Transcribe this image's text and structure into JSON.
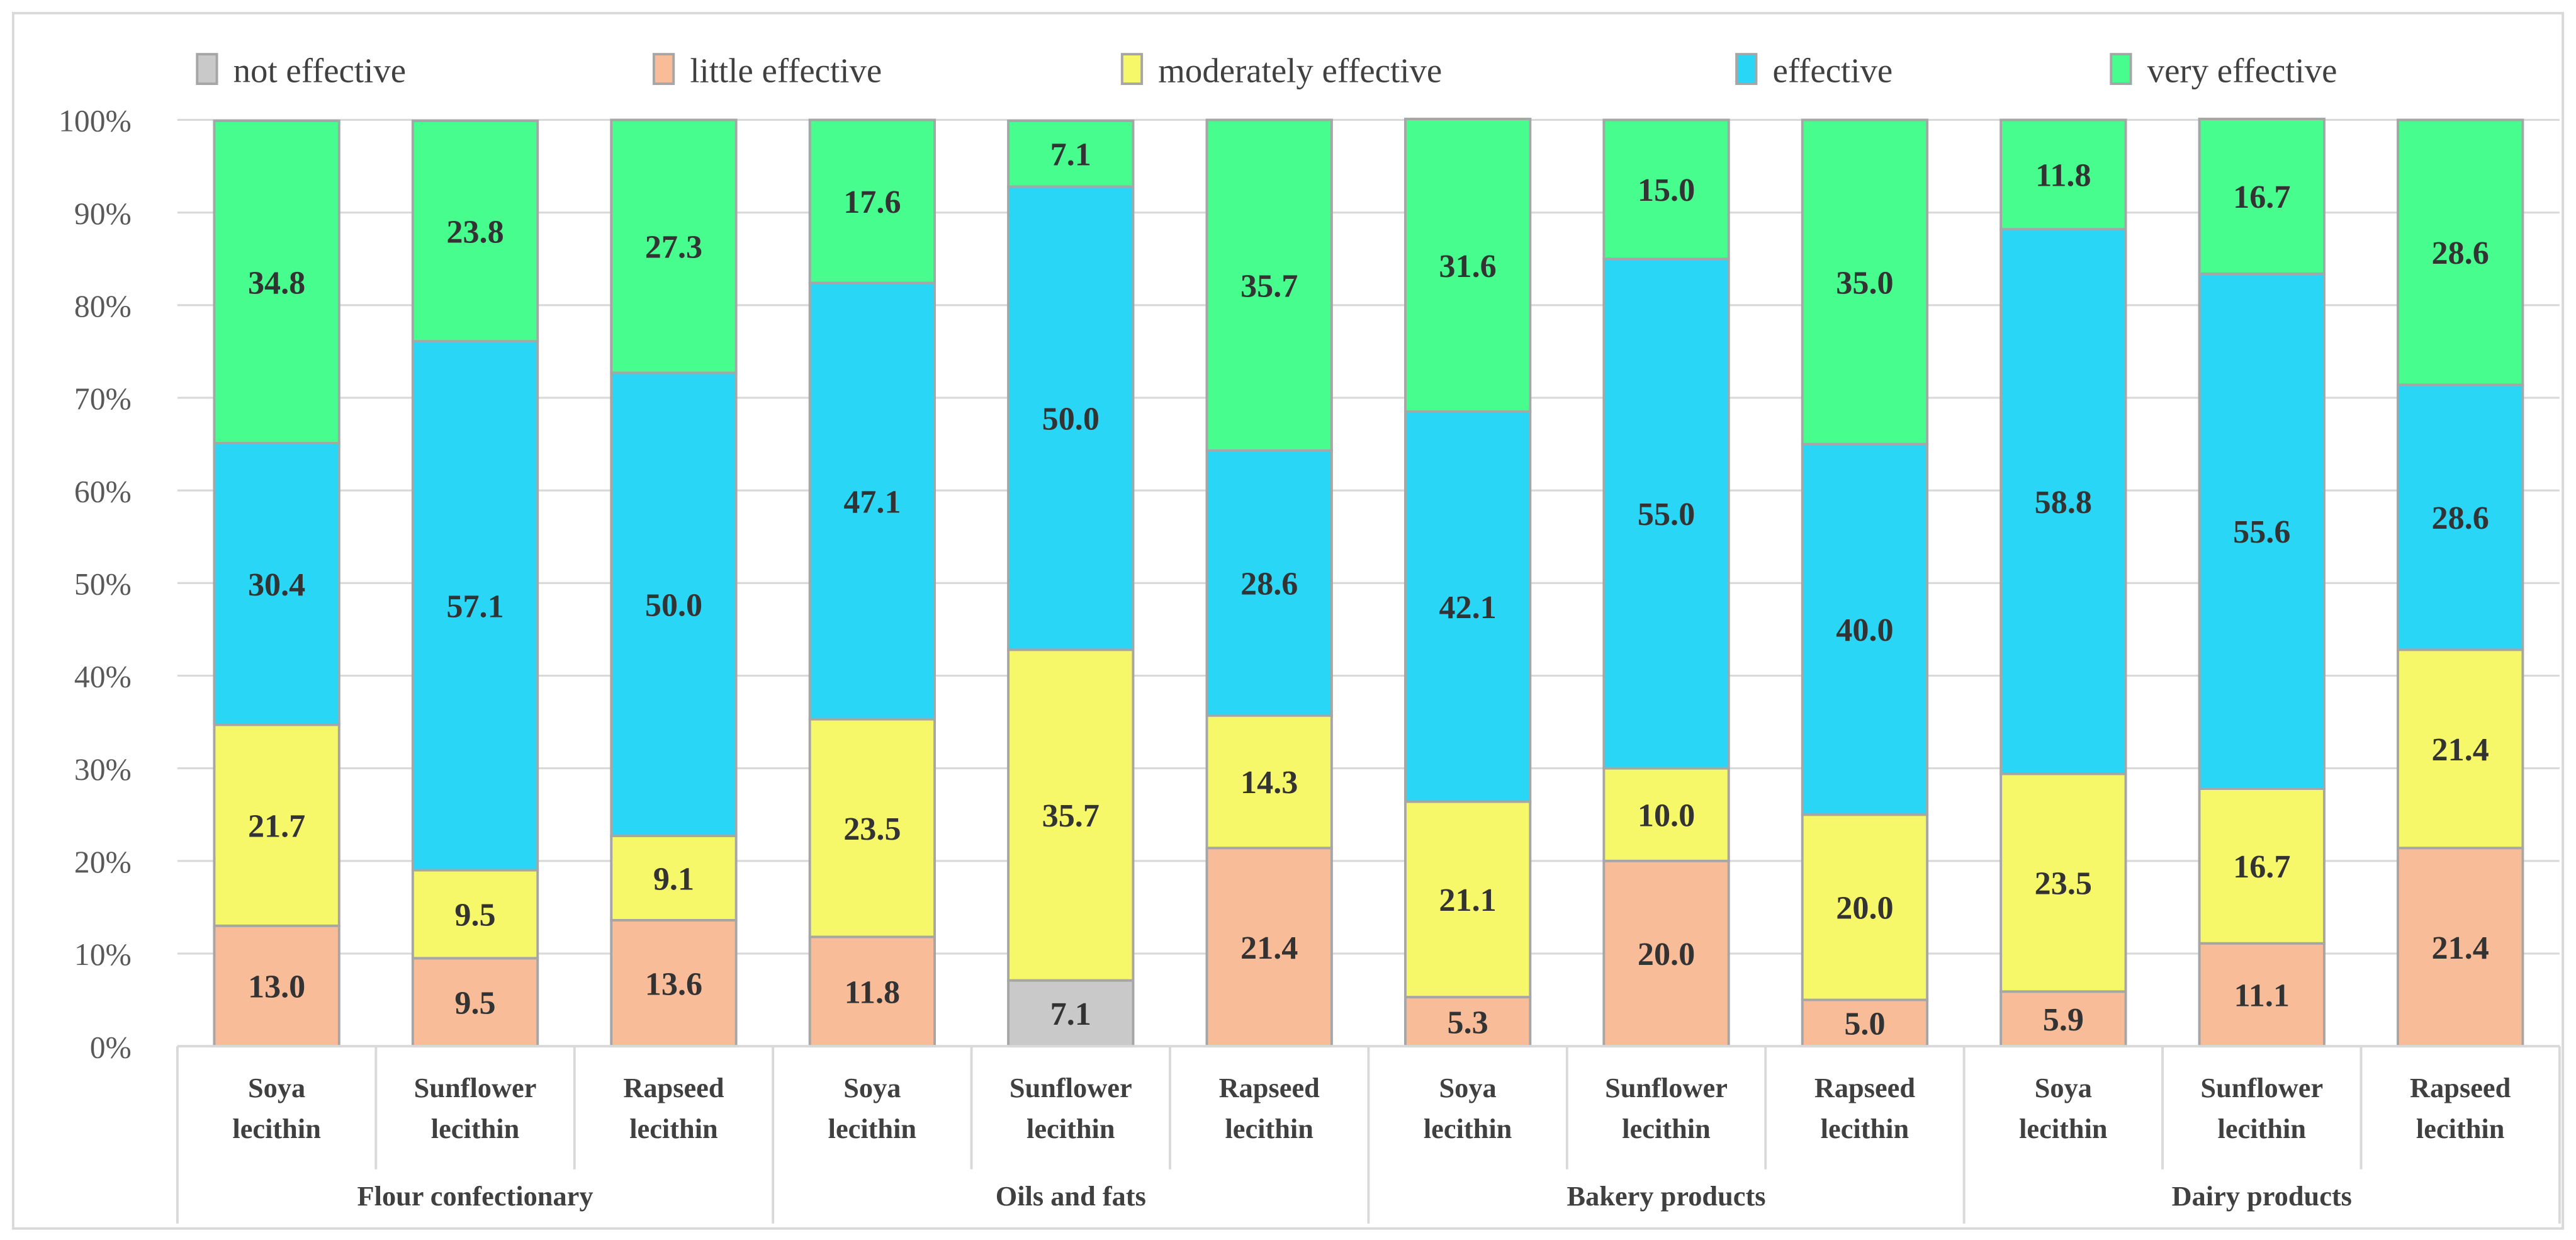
{
  "chart_data": {
    "type": "bar",
    "stacked": true,
    "percent_stacked": true,
    "title": "",
    "xlabel": "",
    "ylabel": "",
    "ylim": [
      0,
      100
    ],
    "y_ticks": [
      "0%",
      "10%",
      "20%",
      "30%",
      "40%",
      "50%",
      "60%",
      "70%",
      "80%",
      "90%",
      "100%"
    ],
    "grid": true,
    "legend_position": "top",
    "groups": [
      {
        "label": "Flour confectionary",
        "categories": [
          "Soya lecithin",
          "Sunflower lecithin",
          "Rapseed lecithin"
        ]
      },
      {
        "label": "Oils and fats",
        "categories": [
          "Soya lecithin",
          "Sunflower lecithin",
          "Rapseed lecithin"
        ]
      },
      {
        "label": "Bakery products",
        "categories": [
          "Soya lecithin",
          "Sunflower lecithin",
          "Rapseed lecithin"
        ]
      },
      {
        "label": "Dairy products",
        "categories": [
          "Soya lecithin",
          "Sunflower lecithin",
          "Rapseed lecithin"
        ]
      }
    ],
    "category_lines": [
      [
        "Soya",
        "lecithin"
      ],
      [
        "Sunflower",
        "lecithin"
      ],
      [
        "Rapseed",
        "lecithin"
      ]
    ],
    "series": [
      {
        "name": "not effective",
        "color": "#C9C9C9",
        "values": [
          0,
          0,
          0,
          0,
          7.1,
          0,
          0,
          0,
          0,
          0,
          0,
          0
        ]
      },
      {
        "name": "little effective",
        "color": "#F8BD98",
        "values": [
          13.0,
          9.5,
          13.6,
          11.8,
          0,
          21.4,
          5.3,
          20.0,
          5.0,
          5.9,
          11.1,
          21.4
        ]
      },
      {
        "name": "moderately effective",
        "color": "#F7F76A",
        "values": [
          21.7,
          9.5,
          9.1,
          23.5,
          35.7,
          14.3,
          21.1,
          10.0,
          20.0,
          23.5,
          16.7,
          21.4
        ]
      },
      {
        "name": "effective",
        "color": "#29D6F6",
        "values": [
          30.4,
          57.1,
          50.0,
          47.1,
          50.0,
          28.6,
          42.1,
          55.0,
          40.0,
          58.8,
          55.6,
          28.6
        ]
      },
      {
        "name": "very effective",
        "color": "#46FD8E",
        "values": [
          34.8,
          23.8,
          27.3,
          17.6,
          7.1,
          35.7,
          31.6,
          15.0,
          35.0,
          11.8,
          16.7,
          28.6
        ]
      }
    ]
  }
}
